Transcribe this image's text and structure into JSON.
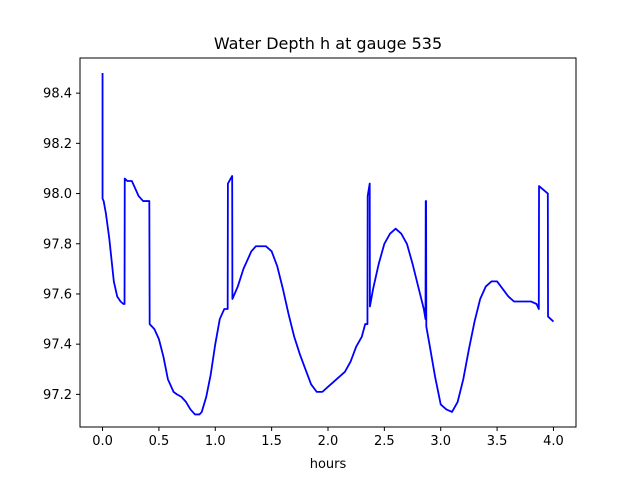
{
  "chart_data": {
    "type": "line",
    "title": "Water Depth h at gauge 535",
    "xlabel": "hours",
    "ylabel": "",
    "xlim": [
      -0.2,
      4.2
    ],
    "ylim": [
      97.07,
      98.54
    ],
    "grid": false,
    "legend": "none",
    "xticks": [
      0.0,
      0.5,
      1.0,
      1.5,
      2.0,
      2.5,
      3.0,
      3.5,
      4.0
    ],
    "xtick_labels": [
      "0.0",
      "0.5",
      "1.0",
      "1.5",
      "2.0",
      "2.5",
      "3.0",
      "3.5",
      "4.0"
    ],
    "yticks": [
      97.2,
      97.4,
      97.6,
      97.8,
      98.0,
      98.2,
      98.4
    ],
    "ytick_labels": [
      "97.2",
      "97.4",
      "97.6",
      "97.8",
      "98.0",
      "98.2",
      "98.4"
    ],
    "series": [
      {
        "name": "",
        "color": "#0000ff",
        "x": [
          0.0,
          0.0,
          0.01,
          0.03,
          0.06,
          0.1,
          0.13,
          0.16,
          0.185,
          0.195,
          0.197,
          0.22,
          0.26,
          0.29,
          0.32,
          0.36,
          0.4,
          0.415,
          0.418,
          0.46,
          0.5,
          0.54,
          0.58,
          0.63,
          0.66,
          0.7,
          0.74,
          0.78,
          0.82,
          0.86,
          0.88,
          0.92,
          0.96,
          1.0,
          1.04,
          1.08,
          1.11,
          1.112,
          1.15,
          1.152,
          1.2,
          1.25,
          1.29,
          1.32,
          1.36,
          1.4,
          1.45,
          1.5,
          1.55,
          1.6,
          1.65,
          1.7,
          1.75,
          1.8,
          1.85,
          1.9,
          1.95,
          2.0,
          2.05,
          2.1,
          2.15,
          2.2,
          2.25,
          2.3,
          2.33,
          2.35,
          2.352,
          2.37,
          2.372,
          2.4,
          2.45,
          2.5,
          2.55,
          2.6,
          2.65,
          2.7,
          2.75,
          2.8,
          2.85,
          2.865,
          2.867,
          2.87,
          2.872,
          2.9,
          2.95,
          3.0,
          3.05,
          3.1,
          3.15,
          3.2,
          3.25,
          3.3,
          3.35,
          3.4,
          3.45,
          3.5,
          3.55,
          3.6,
          3.65,
          3.7,
          3.75,
          3.8,
          3.85,
          3.87,
          3.872,
          3.95,
          3.952,
          4.0
        ],
        "y": [
          98.48,
          97.98,
          97.97,
          97.92,
          97.82,
          97.65,
          97.59,
          97.57,
          97.56,
          97.56,
          98.06,
          98.05,
          98.05,
          98.02,
          97.99,
          97.97,
          97.97,
          97.97,
          97.48,
          97.46,
          97.42,
          97.35,
          97.26,
          97.21,
          97.2,
          97.19,
          97.17,
          97.14,
          97.12,
          97.12,
          97.13,
          97.19,
          97.28,
          97.4,
          97.5,
          97.54,
          97.54,
          98.04,
          98.07,
          97.58,
          97.63,
          97.7,
          97.74,
          97.77,
          97.79,
          97.79,
          97.79,
          97.77,
          97.71,
          97.62,
          97.52,
          97.43,
          97.36,
          97.3,
          97.24,
          97.21,
          97.21,
          97.23,
          97.25,
          97.27,
          97.29,
          97.33,
          97.39,
          97.43,
          97.48,
          97.48,
          97.99,
          98.04,
          97.55,
          97.62,
          97.72,
          97.8,
          97.84,
          97.86,
          97.84,
          97.8,
          97.72,
          97.63,
          97.54,
          97.5,
          97.97,
          97.97,
          97.47,
          97.4,
          97.27,
          97.16,
          97.14,
          97.13,
          97.17,
          97.26,
          97.38,
          97.49,
          97.58,
          97.63,
          97.65,
          97.65,
          97.62,
          97.59,
          97.57,
          97.57,
          97.57,
          97.57,
          97.56,
          97.54,
          98.03,
          98.0,
          97.51,
          97.49
        ]
      }
    ]
  }
}
